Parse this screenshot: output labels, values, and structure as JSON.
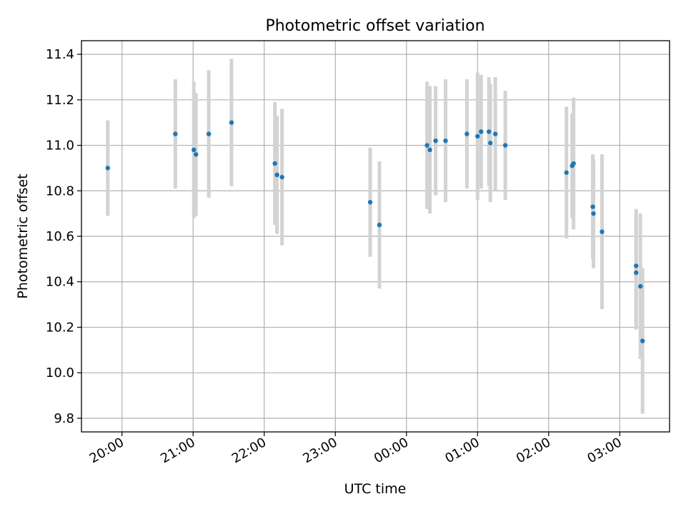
{
  "chart_data": {
    "type": "scatter",
    "title": "Photometric offset variation",
    "xlabel": "UTC time",
    "ylabel": "Photometric offset",
    "x_unit": "hours",
    "x_ticks": [
      {
        "value": 20,
        "label": "20:00"
      },
      {
        "value": 21,
        "label": "21:00"
      },
      {
        "value": 22,
        "label": "22:00"
      },
      {
        "value": 23,
        "label": "23:00"
      },
      {
        "value": 24,
        "label": "00:00"
      },
      {
        "value": 25,
        "label": "01:00"
      },
      {
        "value": 26,
        "label": "02:00"
      },
      {
        "value": 27,
        "label": "03:00"
      }
    ],
    "y_ticks": [
      {
        "value": 9.8,
        "label": "9.8"
      },
      {
        "value": 10.0,
        "label": "10.0"
      },
      {
        "value": 10.2,
        "label": "10.2"
      },
      {
        "value": 10.4,
        "label": "10.4"
      },
      {
        "value": 10.6,
        "label": "10.6"
      },
      {
        "value": 10.8,
        "label": "10.8"
      },
      {
        "value": 11.0,
        "label": "11.0"
      },
      {
        "value": 11.2,
        "label": "11.2"
      },
      {
        "value": 11.4,
        "label": "11.4"
      }
    ],
    "xlim": [
      19.43,
      27.7
    ],
    "ylim": [
      9.74,
      11.46
    ],
    "grid": true,
    "colors": {
      "point": "#1f77b4",
      "errorbar": "#d3d3d3",
      "grid": "#b0b0b0"
    },
    "points": [
      {
        "x": 19.8,
        "y": 10.9,
        "err": 0.21
      },
      {
        "x": 20.75,
        "y": 11.05,
        "err": 0.24
      },
      {
        "x": 21.01,
        "y": 10.98,
        "err": 0.3
      },
      {
        "x": 21.04,
        "y": 10.96,
        "err": 0.27
      },
      {
        "x": 21.22,
        "y": 11.05,
        "err": 0.28
      },
      {
        "x": 21.54,
        "y": 11.1,
        "err": 0.28
      },
      {
        "x": 22.15,
        "y": 10.92,
        "err": 0.27
      },
      {
        "x": 22.18,
        "y": 10.87,
        "err": 0.26
      },
      {
        "x": 22.25,
        "y": 10.86,
        "err": 0.3
      },
      {
        "x": 23.49,
        "y": 10.75,
        "err": 0.24
      },
      {
        "x": 23.62,
        "y": 10.65,
        "err": 0.28
      },
      {
        "x": 24.29,
        "y": 11.0,
        "err": 0.28
      },
      {
        "x": 24.33,
        "y": 10.98,
        "err": 0.28
      },
      {
        "x": 24.41,
        "y": 11.02,
        "err": 0.24
      },
      {
        "x": 24.55,
        "y": 11.02,
        "err": 0.27
      },
      {
        "x": 24.85,
        "y": 11.05,
        "err": 0.24
      },
      {
        "x": 25.0,
        "y": 11.04,
        "err": 0.28
      },
      {
        "x": 25.05,
        "y": 11.06,
        "err": 0.25
      },
      {
        "x": 25.16,
        "y": 11.06,
        "err": 0.24
      },
      {
        "x": 25.18,
        "y": 11.01,
        "err": 0.26
      },
      {
        "x": 25.25,
        "y": 11.05,
        "err": 0.25
      },
      {
        "x": 25.39,
        "y": 11.0,
        "err": 0.24
      },
      {
        "x": 26.25,
        "y": 10.88,
        "err": 0.29
      },
      {
        "x": 26.33,
        "y": 10.91,
        "err": 0.23
      },
      {
        "x": 26.35,
        "y": 10.92,
        "err": 0.29
      },
      {
        "x": 26.62,
        "y": 10.73,
        "err": 0.23
      },
      {
        "x": 26.63,
        "y": 10.7,
        "err": 0.24
      },
      {
        "x": 26.75,
        "y": 10.62,
        "err": 0.34
      },
      {
        "x": 27.23,
        "y": 10.47,
        "err": 0.25
      },
      {
        "x": 27.23,
        "y": 10.44,
        "err": 0.25
      },
      {
        "x": 27.29,
        "y": 10.38,
        "err": 0.32
      },
      {
        "x": 27.32,
        "y": 10.14,
        "err": 0.32
      }
    ]
  }
}
